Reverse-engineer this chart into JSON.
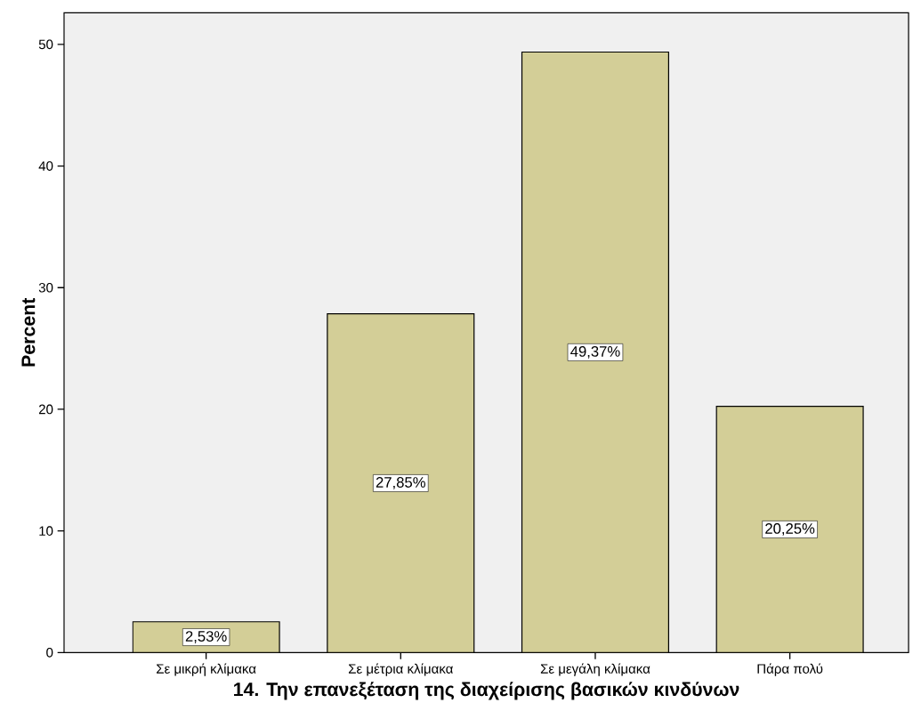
{
  "chart_data": {
    "type": "bar",
    "xlabel": "14. Την επανεξέταση της διαχείρισης βασικών κινδύνων",
    "ylabel": "Percent",
    "categories": [
      "Σε μικρή κλίμακα",
      "Σε μέτρια κλίμακα",
      "Σε μεγάλη κλίμακα",
      "Πάρα πολύ"
    ],
    "values": [
      2.53,
      27.85,
      49.37,
      20.25
    ],
    "value_labels": [
      "2,53%",
      "27,85%",
      "49,37%",
      "20,25%"
    ],
    "color": "#d3ce97",
    "ylim": [
      0,
      52.6
    ],
    "yticks": [
      0,
      10,
      20,
      30,
      40,
      50
    ]
  }
}
